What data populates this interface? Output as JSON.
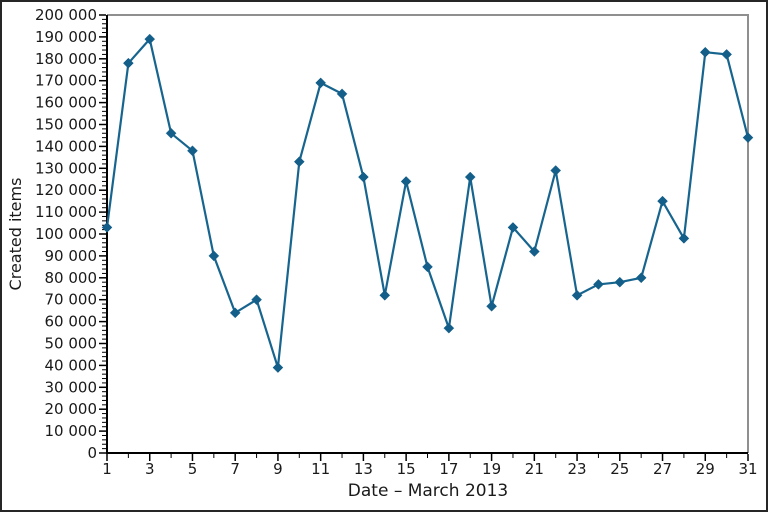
{
  "chart_data": {
    "type": "line",
    "title": "",
    "xlabel": "Date – March 2013",
    "ylabel": "Created items",
    "series": [
      {
        "name": "Created items",
        "x": [
          1,
          2,
          3,
          4,
          5,
          6,
          7,
          8,
          9,
          10,
          11,
          12,
          13,
          14,
          15,
          16,
          17,
          18,
          19,
          20,
          21,
          22,
          23,
          24,
          25,
          26,
          27,
          28,
          29,
          30,
          31
        ],
        "values": [
          103000,
          178000,
          189000,
          146000,
          138000,
          90000,
          64000,
          70000,
          39000,
          133000,
          169000,
          164000,
          126000,
          72000,
          124000,
          85000,
          57000,
          126000,
          67000,
          103000,
          92000,
          129000,
          72000,
          77000,
          78000,
          80000,
          115000,
          98000,
          183000,
          182000,
          144000
        ]
      }
    ],
    "xlim": [
      1,
      31
    ],
    "ylim": [
      0,
      200000
    ],
    "x_major_ticks": [
      1,
      3,
      5,
      7,
      9,
      11,
      13,
      15,
      17,
      19,
      21,
      23,
      25,
      27,
      29,
      31
    ],
    "x_tick_labels": [
      "1",
      "3",
      "5",
      "7",
      "9",
      "11",
      "13",
      "15",
      "17",
      "19",
      "21",
      "23",
      "25",
      "27",
      "29",
      "31"
    ],
    "x_minor_ticks": [
      2,
      4,
      6,
      8,
      10,
      12,
      14,
      16,
      18,
      20,
      22,
      24,
      26,
      28,
      30
    ],
    "y_ticks": [
      0,
      10000,
      20000,
      30000,
      40000,
      50000,
      60000,
      70000,
      80000,
      90000,
      100000,
      110000,
      120000,
      130000,
      140000,
      150000,
      160000,
      170000,
      180000,
      190000,
      200000
    ],
    "y_tick_labels": [
      "0",
      "10 000",
      "20 000",
      "30 000",
      "40 000",
      "50 000",
      "60 000",
      "70 000",
      "80 000",
      "90 000",
      "100 000",
      "110 000",
      "120 000",
      "130 000",
      "140 000",
      "150 000",
      "160 000",
      "170 000",
      "180 000",
      "190 000",
      "200 000"
    ],
    "y_minor_step": 2000,
    "grid": "off",
    "legend": "none",
    "marker": "diamond",
    "colors": {
      "line": "#17658f",
      "marker": "#135f8a",
      "axis": "#000000",
      "spine": "#8f8f8f",
      "text": "#1a1a1a",
      "frame": "#262626",
      "background": "#ffffff"
    }
  }
}
